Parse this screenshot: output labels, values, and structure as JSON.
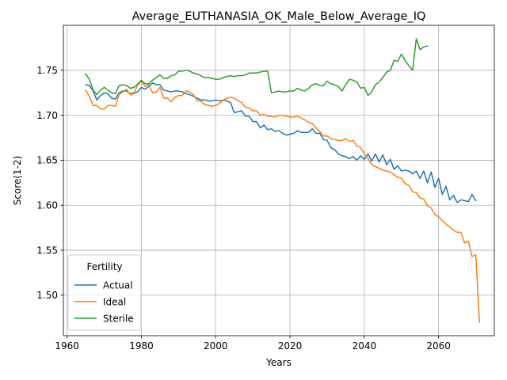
{
  "chart_data": {
    "type": "line",
    "title": "Average_EUTHANASIA_OK_Male_Below_Average_IQ",
    "xlabel": "Years",
    "ylabel": "Score(1-2)",
    "xlim": [
      1959,
      2075
    ],
    "ylim": [
      1.455,
      1.8
    ],
    "xticks": [
      1960,
      1980,
      2000,
      2020,
      2040,
      2060
    ],
    "yticks": [
      1.5,
      1.55,
      1.6,
      1.65,
      1.7,
      1.75
    ],
    "xtick_labels": [
      "1960",
      "1980",
      "2000",
      "2020",
      "2040",
      "2060"
    ],
    "ytick_labels": [
      "1.50",
      "1.55",
      "1.60",
      "1.65",
      "1.70",
      "1.75"
    ],
    "grid": true,
    "legend": {
      "title": "Fertility",
      "placement": "lower-left"
    },
    "series": [
      {
        "name": "Actual",
        "color": "#1f77b4",
        "points": [
          [
            1965,
            1.734
          ],
          [
            1966,
            1.733
          ],
          [
            1967,
            1.727
          ],
          [
            1968,
            1.717
          ],
          [
            1969,
            1.722
          ],
          [
            1970,
            1.725
          ],
          [
            1971,
            1.724
          ],
          [
            1972,
            1.719
          ],
          [
            1973,
            1.718
          ],
          [
            1974,
            1.725
          ],
          [
            1975,
            1.727
          ],
          [
            1976,
            1.727
          ],
          [
            1977,
            1.724
          ],
          [
            1978,
            1.725
          ],
          [
            1979,
            1.726
          ],
          [
            1980,
            1.731
          ],
          [
            1981,
            1.729
          ],
          [
            1982,
            1.732
          ],
          [
            1983,
            1.736
          ],
          [
            1984,
            1.734
          ],
          [
            1985,
            1.734
          ],
          [
            1986,
            1.728
          ],
          [
            1987,
            1.727
          ],
          [
            1988,
            1.726
          ],
          [
            1989,
            1.727
          ],
          [
            1990,
            1.727
          ],
          [
            1991,
            1.726
          ],
          [
            1992,
            1.724
          ],
          [
            1993,
            1.723
          ],
          [
            1994,
            1.721
          ],
          [
            1995,
            1.719
          ],
          [
            1996,
            1.717
          ],
          [
            1997,
            1.717
          ],
          [
            1998,
            1.716
          ],
          [
            1999,
            1.716
          ],
          [
            2000,
            1.717
          ],
          [
            2001,
            1.716
          ],
          [
            2002,
            1.717
          ],
          [
            2003,
            1.716
          ],
          [
            2004,
            1.714
          ],
          [
            2005,
            1.703
          ],
          [
            2006,
            1.704
          ],
          [
            2007,
            1.705
          ],
          [
            2008,
            1.699
          ],
          [
            2009,
            1.699
          ],
          [
            2010,
            1.693
          ],
          [
            2011,
            1.693
          ],
          [
            2012,
            1.686
          ],
          [
            2013,
            1.689
          ],
          [
            2014,
            1.684
          ],
          [
            2015,
            1.685
          ],
          [
            2016,
            1.682
          ],
          [
            2017,
            1.683
          ],
          [
            2018,
            1.68
          ],
          [
            2019,
            1.678
          ],
          [
            2020,
            1.679
          ],
          [
            2021,
            1.68
          ],
          [
            2022,
            1.683
          ],
          [
            2023,
            1.681
          ],
          [
            2024,
            1.681
          ],
          [
            2025,
            1.681
          ],
          [
            2026,
            1.685
          ],
          [
            2027,
            1.68
          ],
          [
            2028,
            1.68
          ],
          [
            2029,
            1.673
          ],
          [
            2030,
            1.672
          ],
          [
            2031,
            1.664
          ],
          [
            2032,
            1.662
          ],
          [
            2033,
            1.657
          ],
          [
            2034,
            1.655
          ],
          [
            2035,
            1.654
          ],
          [
            2036,
            1.652
          ],
          [
            2037,
            1.654
          ],
          [
            2038,
            1.65
          ],
          [
            2039,
            1.655
          ],
          [
            2040,
            1.651
          ],
          [
            2041,
            1.657
          ],
          [
            2042,
            1.649
          ],
          [
            2043,
            1.657
          ],
          [
            2044,
            1.648
          ],
          [
            2045,
            1.656
          ],
          [
            2046,
            1.645
          ],
          [
            2047,
            1.651
          ],
          [
            2048,
            1.64
          ],
          [
            2049,
            1.644
          ],
          [
            2050,
            1.638
          ],
          [
            2051,
            1.639
          ],
          [
            2052,
            1.638
          ],
          [
            2053,
            1.635
          ],
          [
            2054,
            1.638
          ],
          [
            2055,
            1.63
          ],
          [
            2056,
            1.638
          ],
          [
            2057,
            1.625
          ],
          [
            2058,
            1.637
          ],
          [
            2059,
            1.62
          ],
          [
            2060,
            1.63
          ],
          [
            2061,
            1.612
          ],
          [
            2062,
            1.621
          ],
          [
            2063,
            1.606
          ],
          [
            2064,
            1.611
          ],
          [
            2065,
            1.603
          ],
          [
            2066,
            1.606
          ],
          [
            2067,
            1.605
          ],
          [
            2068,
            1.604
          ],
          [
            2069,
            1.612
          ],
          [
            2070,
            1.605
          ]
        ]
      },
      {
        "name": "Ideal",
        "color": "#ff7f0e",
        "points": [
          [
            1965,
            1.728
          ],
          [
            1966,
            1.721
          ],
          [
            1967,
            1.711
          ],
          [
            1968,
            1.711
          ],
          [
            1969,
            1.707
          ],
          [
            1970,
            1.707
          ],
          [
            1971,
            1.711
          ],
          [
            1972,
            1.711
          ],
          [
            1973,
            1.71
          ],
          [
            1974,
            1.723
          ],
          [
            1975,
            1.726
          ],
          [
            1976,
            1.729
          ],
          [
            1977,
            1.723
          ],
          [
            1978,
            1.724
          ],
          [
            1979,
            1.734
          ],
          [
            1980,
            1.738
          ],
          [
            1981,
            1.732
          ],
          [
            1982,
            1.734
          ],
          [
            1983,
            1.725
          ],
          [
            1984,
            1.726
          ],
          [
            1985,
            1.731
          ],
          [
            1986,
            1.719
          ],
          [
            1987,
            1.719
          ],
          [
            1988,
            1.715
          ],
          [
            1989,
            1.72
          ],
          [
            1990,
            1.722
          ],
          [
            1991,
            1.722
          ],
          [
            1992,
            1.727
          ],
          [
            1993,
            1.726
          ],
          [
            1994,
            1.723
          ],
          [
            1995,
            1.716
          ],
          [
            1996,
            1.716
          ],
          [
            1997,
            1.712
          ],
          [
            1998,
            1.711
          ],
          [
            1999,
            1.71
          ],
          [
            2000,
            1.711
          ],
          [
            2001,
            1.713
          ],
          [
            2002,
            1.717
          ],
          [
            2003,
            1.719
          ],
          [
            2004,
            1.72
          ],
          [
            2005,
            1.719
          ],
          [
            2006,
            1.716
          ],
          [
            2007,
            1.714
          ],
          [
            2008,
            1.709
          ],
          [
            2009,
            1.708
          ],
          [
            2010,
            1.705
          ],
          [
            2011,
            1.705
          ],
          [
            2012,
            1.7
          ],
          [
            2013,
            1.701
          ],
          [
            2014,
            1.699
          ],
          [
            2015,
            1.699
          ],
          [
            2016,
            1.698
          ],
          [
            2017,
            1.7
          ],
          [
            2018,
            1.7
          ],
          [
            2019,
            1.699
          ],
          [
            2020,
            1.698
          ],
          [
            2021,
            1.698
          ],
          [
            2022,
            1.699
          ],
          [
            2023,
            1.697
          ],
          [
            2024,
            1.695
          ],
          [
            2025,
            1.692
          ],
          [
            2026,
            1.691
          ],
          [
            2027,
            1.686
          ],
          [
            2028,
            1.682
          ],
          [
            2029,
            1.677
          ],
          [
            2030,
            1.677
          ],
          [
            2031,
            1.674
          ],
          [
            2032,
            1.673
          ],
          [
            2033,
            1.672
          ],
          [
            2034,
            1.672
          ],
          [
            2035,
            1.674
          ],
          [
            2036,
            1.671
          ],
          [
            2037,
            1.672
          ],
          [
            2038,
            1.666
          ],
          [
            2039,
            1.664
          ],
          [
            2040,
            1.657
          ],
          [
            2041,
            1.652
          ],
          [
            2042,
            1.645
          ],
          [
            2043,
            1.643
          ],
          [
            2044,
            1.641
          ],
          [
            2045,
            1.639
          ],
          [
            2046,
            1.638
          ],
          [
            2047,
            1.637
          ],
          [
            2048,
            1.634
          ],
          [
            2049,
            1.631
          ],
          [
            2050,
            1.63
          ],
          [
            2051,
            1.624
          ],
          [
            2052,
            1.622
          ],
          [
            2053,
            1.615
          ],
          [
            2054,
            1.614
          ],
          [
            2055,
            1.608
          ],
          [
            2056,
            1.607
          ],
          [
            2057,
            1.599
          ],
          [
            2058,
            1.597
          ],
          [
            2059,
            1.59
          ],
          [
            2060,
            1.587
          ],
          [
            2061,
            1.583
          ],
          [
            2062,
            1.579
          ],
          [
            2063,
            1.576
          ],
          [
            2064,
            1.572
          ],
          [
            2065,
            1.57
          ],
          [
            2066,
            1.57
          ],
          [
            2067,
            1.558
          ],
          [
            2068,
            1.56
          ],
          [
            2069,
            1.543
          ],
          [
            2070,
            1.545
          ],
          [
            2071,
            1.47
          ]
        ]
      },
      {
        "name": "Sterile",
        "color": "#2ca02c",
        "points": [
          [
            1965,
            1.746
          ],
          [
            1966,
            1.74
          ],
          [
            1967,
            1.728
          ],
          [
            1968,
            1.723
          ],
          [
            1969,
            1.728
          ],
          [
            1970,
            1.731
          ],
          [
            1971,
            1.728
          ],
          [
            1972,
            1.725
          ],
          [
            1973,
            1.724
          ],
          [
            1974,
            1.733
          ],
          [
            1975,
            1.734
          ],
          [
            1976,
            1.733
          ],
          [
            1977,
            1.73
          ],
          [
            1978,
            1.731
          ],
          [
            1979,
            1.735
          ],
          [
            1980,
            1.739
          ],
          [
            1981,
            1.735
          ],
          [
            1982,
            1.735
          ],
          [
            1983,
            1.739
          ],
          [
            1984,
            1.742
          ],
          [
            1985,
            1.745
          ],
          [
            1986,
            1.741
          ],
          [
            1987,
            1.741
          ],
          [
            1988,
            1.744
          ],
          [
            1989,
            1.745
          ],
          [
            1990,
            1.749
          ],
          [
            1991,
            1.749
          ],
          [
            1992,
            1.75
          ],
          [
            1993,
            1.749
          ],
          [
            1994,
            1.747
          ],
          [
            1995,
            1.746
          ],
          [
            1996,
            1.744
          ],
          [
            1997,
            1.742
          ],
          [
            1998,
            1.742
          ],
          [
            1999,
            1.741
          ],
          [
            2000,
            1.74
          ],
          [
            2001,
            1.74
          ],
          [
            2002,
            1.742
          ],
          [
            2003,
            1.743
          ],
          [
            2004,
            1.744
          ],
          [
            2005,
            1.743
          ],
          [
            2006,
            1.744
          ],
          [
            2007,
            1.744
          ],
          [
            2008,
            1.745
          ],
          [
            2009,
            1.747
          ],
          [
            2010,
            1.747
          ],
          [
            2011,
            1.747
          ],
          [
            2012,
            1.748
          ],
          [
            2013,
            1.749
          ],
          [
            2014,
            1.749
          ],
          [
            2015,
            1.725
          ],
          [
            2016,
            1.726
          ],
          [
            2017,
            1.727
          ],
          [
            2018,
            1.726
          ],
          [
            2019,
            1.726
          ],
          [
            2020,
            1.727
          ],
          [
            2021,
            1.727
          ],
          [
            2022,
            1.73
          ],
          [
            2023,
            1.728
          ],
          [
            2024,
            1.727
          ],
          [
            2025,
            1.73
          ],
          [
            2026,
            1.734
          ],
          [
            2027,
            1.735
          ],
          [
            2028,
            1.733
          ],
          [
            2029,
            1.733
          ],
          [
            2030,
            1.738
          ],
          [
            2031,
            1.735
          ],
          [
            2032,
            1.734
          ],
          [
            2033,
            1.732
          ],
          [
            2034,
            1.727
          ],
          [
            2035,
            1.734
          ],
          [
            2036,
            1.74
          ],
          [
            2037,
            1.739
          ],
          [
            2038,
            1.737
          ],
          [
            2039,
            1.73
          ],
          [
            2040,
            1.731
          ],
          [
            2041,
            1.722
          ],
          [
            2042,
            1.726
          ],
          [
            2043,
            1.734
          ],
          [
            2044,
            1.737
          ],
          [
            2045,
            1.742
          ],
          [
            2046,
            1.748
          ],
          [
            2047,
            1.75
          ],
          [
            2048,
            1.761
          ],
          [
            2049,
            1.76
          ],
          [
            2050,
            1.768
          ],
          [
            2051,
            1.761
          ],
          [
            2052,
            1.755
          ],
          [
            2053,
            1.75
          ],
          [
            2054,
            1.785
          ],
          [
            2055,
            1.773
          ],
          [
            2056,
            1.776
          ],
          [
            2057,
            1.777
          ]
        ]
      }
    ]
  }
}
